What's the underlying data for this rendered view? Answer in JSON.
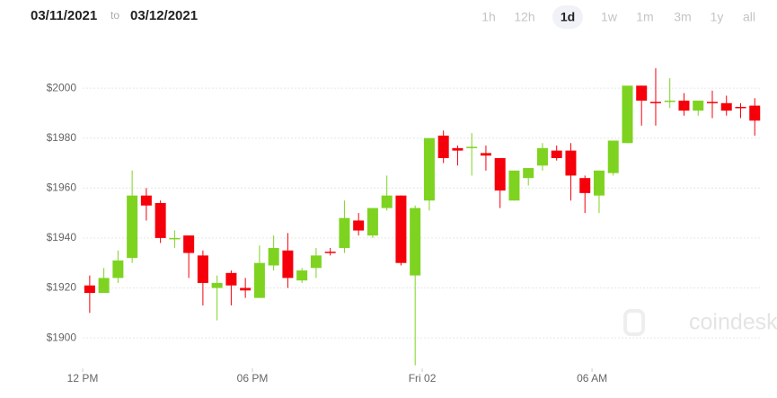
{
  "header": {
    "from_date": "03/11/2021",
    "separator": "to",
    "to_date": "03/12/2021",
    "ranges": [
      "1h",
      "12h",
      "1d",
      "1w",
      "1m",
      "3m",
      "1y",
      "all"
    ],
    "active_range": "1d"
  },
  "watermark": "coindesk",
  "chart_data": {
    "type": "candlestick",
    "up_color": "#7ed321",
    "down_color": "#f5000a",
    "grid": true,
    "xlim": [
      9.08,
      36.06
    ],
    "ylim": [
      1887.8,
      2035.3
    ],
    "xticks": [
      {
        "value": 12,
        "label": "12 PM"
      },
      {
        "value": 18,
        "label": "06 PM"
      },
      {
        "value": 24,
        "label": "Fri 02"
      },
      {
        "value": 30,
        "label": "06 AM"
      }
    ],
    "yticks": [
      {
        "value": 1900,
        "label": "$1900"
      },
      {
        "value": 1920,
        "label": "$1920"
      },
      {
        "value": 1940,
        "label": "$1940"
      },
      {
        "value": 1960,
        "label": "$1960"
      },
      {
        "value": 1980,
        "label": "$1980"
      },
      {
        "value": 2000,
        "label": "$2000"
      }
    ],
    "x": [
      12.25,
      12.75,
      13.25,
      13.75,
      14.25,
      14.75,
      15.25,
      15.75,
      16.25,
      16.75,
      17.25,
      17.75,
      18.25,
      18.75,
      19.25,
      19.75,
      20.25,
      20.75,
      21.25,
      21.75,
      22.25,
      22.75,
      23.25,
      23.75,
      24.25,
      24.75,
      25.25,
      25.75,
      26.25,
      26.75,
      27.25,
      27.75,
      28.25,
      28.75,
      29.25,
      29.75,
      30.25,
      30.75,
      31.25,
      31.75,
      32.25,
      32.75,
      33.25,
      33.75,
      34.25,
      34.75,
      35.25,
      35.75
    ],
    "open": [
      1921,
      1918,
      1924,
      1932,
      1957,
      1954,
      1939.5,
      1941,
      1933,
      1920,
      1926,
      1920,
      1916,
      1929,
      1935,
      1923,
      1928,
      1934.5,
      1936,
      1947,
      1941,
      1952,
      1957,
      1925,
      1955,
      1981,
      1976,
      1976,
      1974,
      1972,
      1955,
      1964,
      1969,
      1975,
      1975,
      1964,
      1957,
      1966,
      1978,
      2001,
      1994.5,
      1994.5,
      1995,
      1991,
      1994.5,
      1994,
      1992.5,
      1993
    ],
    "high": [
      1925,
      1928,
      1935,
      1967,
      1960,
      1955,
      1943,
      1941,
      1935,
      1925,
      1927,
      1924,
      1937,
      1941,
      1942,
      1928,
      1936,
      1936,
      1955,
      1950,
      1952,
      1965,
      1957,
      1953,
      1980,
      1983,
      1977,
      1982,
      1977,
      1972,
      1967,
      1968,
      1978,
      1977,
      1978,
      1965,
      1967,
      1979,
      2001,
      2001,
      2008,
      2004,
      1998,
      1995,
      1999,
      1997,
      1994,
      1996
    ],
    "low": [
      1910,
      1918,
      1922,
      1930,
      1947,
      1938,
      1936,
      1924,
      1913,
      1907,
      1913,
      1916,
      1916,
      1927,
      1920,
      1922,
      1924,
      1933,
      1934,
      1941,
      1940,
      1951,
      1929,
      1889,
      1951,
      1970,
      1969,
      1965,
      1967,
      1952,
      1955,
      1961,
      1967,
      1971,
      1955,
      1950,
      1950,
      1965,
      1978,
      1985,
      1985,
      1992,
      1989,
      1989,
      1988,
      1989,
      1988,
      1981
    ],
    "close": [
      1918,
      1924,
      1931,
      1957,
      1953,
      1940,
      1940,
      1934,
      1922,
      1922,
      1921,
      1919,
      1930,
      1936,
      1924,
      1927,
      1933,
      1934,
      1948,
      1943,
      1952,
      1957,
      1930,
      1952,
      1980,
      1972,
      1975,
      1976.5,
      1973,
      1959,
      1967,
      1968,
      1976,
      1972,
      1965,
      1958,
      1967,
      1979,
      2001,
      1995,
      1994,
      1995,
      1991,
      1995,
      1994,
      1991,
      1992,
      1987
    ]
  }
}
